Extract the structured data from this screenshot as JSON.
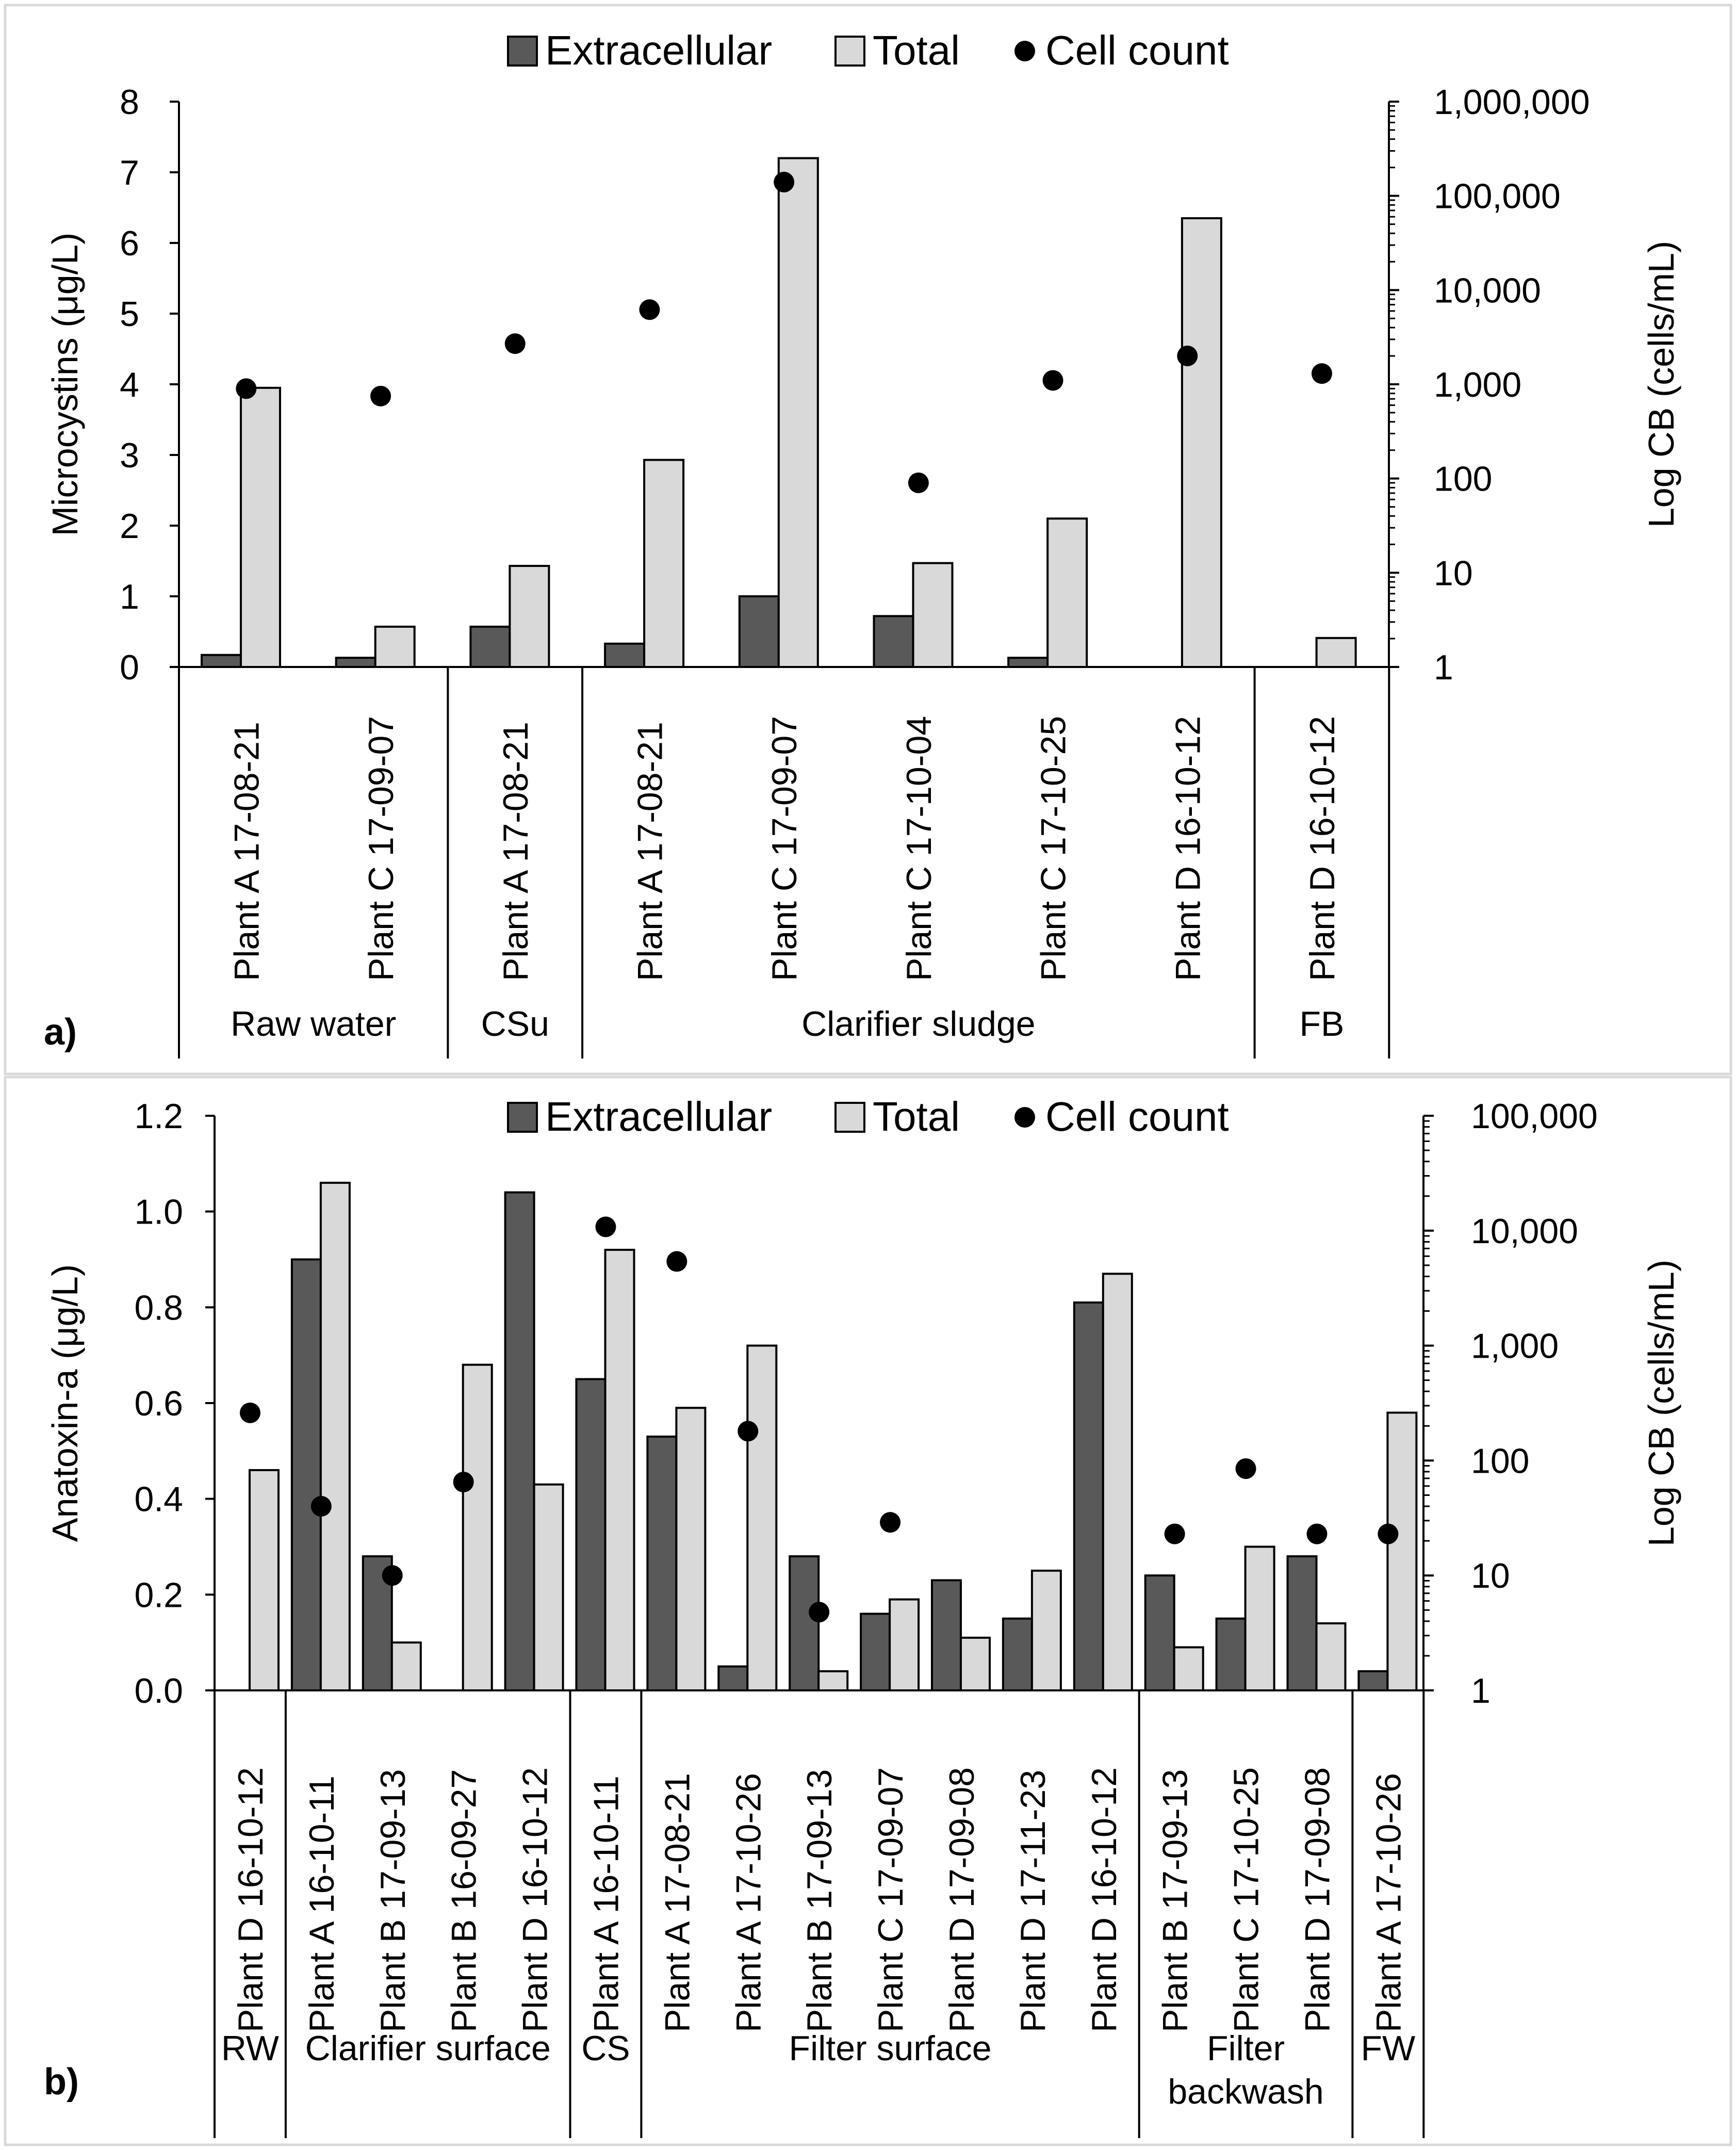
{
  "chart_data": [
    {
      "type": "bar",
      "panel_label": "a)",
      "ylabel": "Microcystins (μg/L)",
      "y2label": "Log CB (cells/mL)",
      "ylim": [
        0,
        8
      ],
      "yticks": [
        "0",
        "1",
        "2",
        "3",
        "4",
        "5",
        "6",
        "7",
        "8"
      ],
      "y2lim": [
        1,
        1000000
      ],
      "y2ticks": [
        "1",
        "10",
        "100",
        "1,000",
        "10,000",
        "100,000",
        "1,000,000"
      ],
      "legend": [
        "Extracellular",
        "Total",
        "Cell count"
      ],
      "categories": [
        "Plant A 17-08-21",
        "Plant C 17-09-07",
        "Plant A 17-08-21",
        "Plant A 17-08-21",
        "Plant C 17-09-07",
        "Plant C 17-10-04",
        "Plant C 17-10-25",
        "Plant D 16-10-12",
        "Plant D 16-10-12"
      ],
      "groups": [
        {
          "label": "Raw water",
          "start": 0,
          "end": 2
        },
        {
          "label": "CSu",
          "start": 2,
          "end": 3
        },
        {
          "label": "Clarifier sludge",
          "start": 3,
          "end": 8
        },
        {
          "label": "FB",
          "start": 8,
          "end": 9
        }
      ],
      "series": [
        {
          "name": "Extracellular",
          "values": [
            0.17,
            0.13,
            0.57,
            0.33,
            1.0,
            0.72,
            0.13,
            null,
            null
          ]
        },
        {
          "name": "Total",
          "values": [
            3.95,
            0.57,
            1.43,
            2.93,
            7.2,
            1.47,
            2.1,
            6.35,
            0.41
          ]
        },
        {
          "name": "Cell count",
          "values": [
            900,
            750,
            2700,
            6200,
            140000,
            90,
            1100,
            2000,
            1300
          ]
        }
      ]
    },
    {
      "type": "bar",
      "panel_label": "b)",
      "ylabel": "Anatoxin-a (μg/L)",
      "y2label": "Log CB (cells/mL)",
      "ylim": [
        0,
        1.2
      ],
      "yticks": [
        "0.0",
        "0.2",
        "0.4",
        "0.6",
        "0.8",
        "1.0",
        "1.2"
      ],
      "y2lim": [
        1,
        100000
      ],
      "y2ticks": [
        "1",
        "10",
        "100",
        "1,000",
        "10,000",
        "100,000"
      ],
      "legend": [
        "Extracellular",
        "Total",
        "Cell count"
      ],
      "categories": [
        "Plant D 16-10-12",
        "Plant A 16-10-11",
        "Plant B 17-09-13",
        "Plant B 16-09-27",
        "Plant D 16-10-12",
        "Plant A 16-10-11",
        "Plant A 17-08-21",
        "Plant A 17-10-26",
        "Plant B 17-09-13",
        "Plant C 17-09-07",
        "Plant D 17-09-08",
        "Plant D 17-11-23",
        "Plant D 16-10-12",
        "Plant B 17-09-13",
        "Plant C 17-10-25",
        "Plant D 17-09-08",
        "Plant A 17-10-26"
      ],
      "groups": [
        {
          "label": "RW",
          "start": 0,
          "end": 1
        },
        {
          "label": "Clarifier surface",
          "start": 1,
          "end": 5
        },
        {
          "label": "CS",
          "start": 5,
          "end": 6
        },
        {
          "label": "Filter surface",
          "start": 6,
          "end": 13
        },
        {
          "label": "Filter backwash",
          "start": 13,
          "end": 16
        },
        {
          "label": "FW",
          "start": 16,
          "end": 17
        }
      ],
      "series": [
        {
          "name": "Extracellular",
          "values": [
            null,
            0.9,
            0.28,
            null,
            1.04,
            0.65,
            0.53,
            0.05,
            0.28,
            0.16,
            0.23,
            0.15,
            0.81,
            0.24,
            0.15,
            0.28,
            0.04
          ]
        },
        {
          "name": "Total",
          "values": [
            0.46,
            1.06,
            0.1,
            0.68,
            0.43,
            0.92,
            0.59,
            0.72,
            0.04,
            0.19,
            0.11,
            0.25,
            0.87,
            0.09,
            0.3,
            0.14,
            0.58
          ]
        },
        {
          "name": "Cell count",
          "values": [
            260,
            40,
            10,
            65,
            null,
            10800,
            5400,
            180,
            4.8,
            29,
            null,
            null,
            null,
            23,
            85,
            23,
            23
          ]
        }
      ]
    }
  ]
}
